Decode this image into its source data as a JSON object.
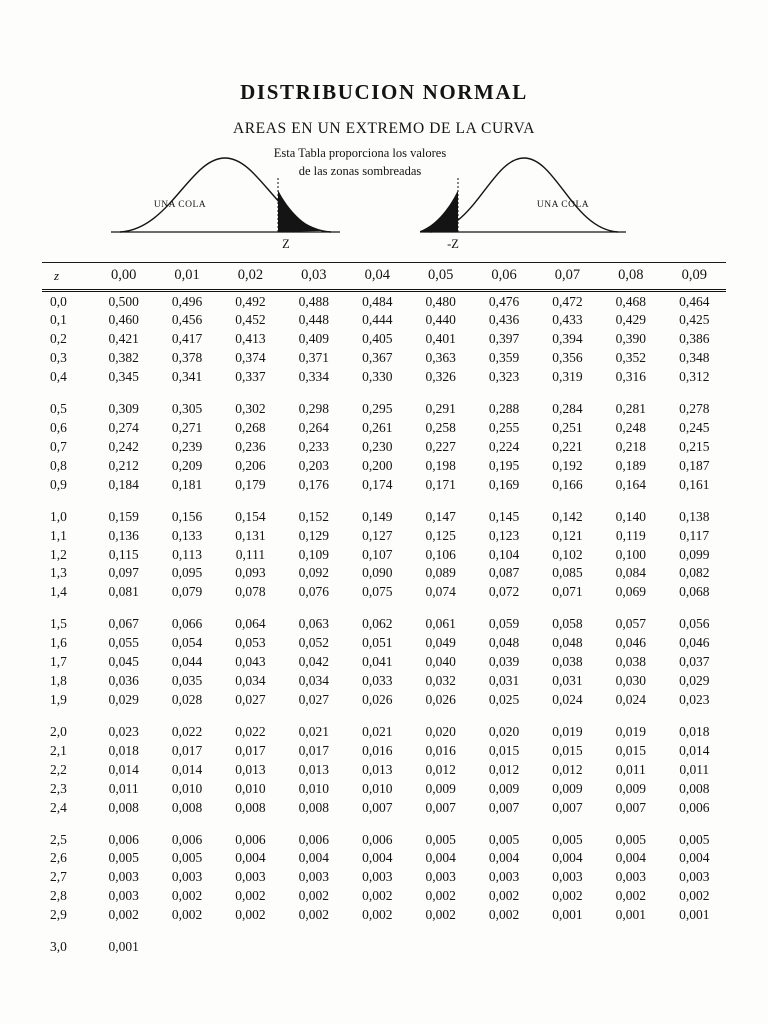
{
  "page": {
    "title": "DISTRIBUCION NORMAL",
    "subtitle": "AREAS EN UN EXTREMO DE LA CURVA",
    "note_line1": "Esta Tabla proporciona los valores",
    "note_line2": "de las zonas sombreadas",
    "ink_color": "#141414",
    "paper_color": "#fdfdfb"
  },
  "curves": {
    "left_label": "UNA COLA",
    "right_label": "UNA COLA",
    "left_axis_label": "Z",
    "right_axis_label": "-Z"
  },
  "table": {
    "headers": [
      "z",
      "0,00",
      "0,01",
      "0,02",
      "0,03",
      "0,04",
      "0,05",
      "0,06",
      "0,07",
      "0,08",
      "0,09"
    ],
    "groups": [
      [
        [
          "0,0",
          "0,500",
          "0,496",
          "0,492",
          "0,488",
          "0,484",
          "0,480",
          "0,476",
          "0,472",
          "0,468",
          "0,464"
        ],
        [
          "0,1",
          "0,460",
          "0,456",
          "0,452",
          "0,448",
          "0,444",
          "0,440",
          "0,436",
          "0,433",
          "0,429",
          "0,425"
        ],
        [
          "0,2",
          "0,421",
          "0,417",
          "0,413",
          "0,409",
          "0,405",
          "0,401",
          "0,397",
          "0,394",
          "0,390",
          "0,386"
        ],
        [
          "0,3",
          "0,382",
          "0,378",
          "0,374",
          "0,371",
          "0,367",
          "0,363",
          "0,359",
          "0,356",
          "0,352",
          "0,348"
        ],
        [
          "0,4",
          "0,345",
          "0,341",
          "0,337",
          "0,334",
          "0,330",
          "0,326",
          "0,323",
          "0,319",
          "0,316",
          "0,312"
        ]
      ],
      [
        [
          "0,5",
          "0,309",
          "0,305",
          "0,302",
          "0,298",
          "0,295",
          "0,291",
          "0,288",
          "0,284",
          "0,281",
          "0,278"
        ],
        [
          "0,6",
          "0,274",
          "0,271",
          "0,268",
          "0,264",
          "0,261",
          "0,258",
          "0,255",
          "0,251",
          "0,248",
          "0,245"
        ],
        [
          "0,7",
          "0,242",
          "0,239",
          "0,236",
          "0,233",
          "0,230",
          "0,227",
          "0,224",
          "0,221",
          "0,218",
          "0,215"
        ],
        [
          "0,8",
          "0,212",
          "0,209",
          "0,206",
          "0,203",
          "0,200",
          "0,198",
          "0,195",
          "0,192",
          "0,189",
          "0,187"
        ],
        [
          "0,9",
          "0,184",
          "0,181",
          "0,179",
          "0,176",
          "0,174",
          "0,171",
          "0,169",
          "0,166",
          "0,164",
          "0,161"
        ]
      ],
      [
        [
          "1,0",
          "0,159",
          "0,156",
          "0,154",
          "0,152",
          "0,149",
          "0,147",
          "0,145",
          "0,142",
          "0,140",
          "0,138"
        ],
        [
          "1,1",
          "0,136",
          "0,133",
          "0,131",
          "0,129",
          "0,127",
          "0,125",
          "0,123",
          "0,121",
          "0,119",
          "0,117"
        ],
        [
          "1,2",
          "0,115",
          "0,113",
          "0,111",
          "0,109",
          "0,107",
          "0,106",
          "0,104",
          "0,102",
          "0,100",
          "0,099"
        ],
        [
          "1,3",
          "0,097",
          "0,095",
          "0,093",
          "0,092",
          "0,090",
          "0,089",
          "0,087",
          "0,085",
          "0,084",
          "0,082"
        ],
        [
          "1,4",
          "0,081",
          "0,079",
          "0,078",
          "0,076",
          "0,075",
          "0,074",
          "0,072",
          "0,071",
          "0,069",
          "0,068"
        ]
      ],
      [
        [
          "1,5",
          "0,067",
          "0,066",
          "0,064",
          "0,063",
          "0,062",
          "0,061",
          "0,059",
          "0,058",
          "0,057",
          "0,056"
        ],
        [
          "1,6",
          "0,055",
          "0,054",
          "0,053",
          "0,052",
          "0,051",
          "0,049",
          "0,048",
          "0,048",
          "0,046",
          "0,046"
        ],
        [
          "1,7",
          "0,045",
          "0,044",
          "0,043",
          "0,042",
          "0,041",
          "0,040",
          "0,039",
          "0,038",
          "0,038",
          "0,037"
        ],
        [
          "1,8",
          "0,036",
          "0,035",
          "0,034",
          "0,034",
          "0,033",
          "0,032",
          "0,031",
          "0,031",
          "0,030",
          "0,029"
        ],
        [
          "1,9",
          "0,029",
          "0,028",
          "0,027",
          "0,027",
          "0,026",
          "0,026",
          "0,025",
          "0,024",
          "0,024",
          "0,023"
        ]
      ],
      [
        [
          "2,0",
          "0,023",
          "0,022",
          "0,022",
          "0,021",
          "0,021",
          "0,020",
          "0,020",
          "0,019",
          "0,019",
          "0,018"
        ],
        [
          "2,1",
          "0,018",
          "0,017",
          "0,017",
          "0,017",
          "0,016",
          "0,016",
          "0,015",
          "0,015",
          "0,015",
          "0,014"
        ],
        [
          "2,2",
          "0,014",
          "0,014",
          "0,013",
          "0,013",
          "0,013",
          "0,012",
          "0,012",
          "0,012",
          "0,011",
          "0,011"
        ],
        [
          "2,3",
          "0,011",
          "0,010",
          "0,010",
          "0,010",
          "0,010",
          "0,009",
          "0,009",
          "0,009",
          "0,009",
          "0,008"
        ],
        [
          "2,4",
          "0,008",
          "0,008",
          "0,008",
          "0,008",
          "0,007",
          "0,007",
          "0,007",
          "0,007",
          "0,007",
          "0,006"
        ]
      ],
      [
        [
          "2,5",
          "0,006",
          "0,006",
          "0,006",
          "0,006",
          "0,006",
          "0,005",
          "0,005",
          "0,005",
          "0,005",
          "0,005"
        ],
        [
          "2,6",
          "0,005",
          "0,005",
          "0,004",
          "0,004",
          "0,004",
          "0,004",
          "0,004",
          "0,004",
          "0,004",
          "0,004"
        ],
        [
          "2,7",
          "0,003",
          "0,003",
          "0,003",
          "0,003",
          "0,003",
          "0,003",
          "0,003",
          "0,003",
          "0,003",
          "0,003"
        ],
        [
          "2,8",
          "0,003",
          "0,002",
          "0,002",
          "0,002",
          "0,002",
          "0,002",
          "0,002",
          "0,002",
          "0,002",
          "0,002"
        ],
        [
          "2,9",
          "0,002",
          "0,002",
          "0,002",
          "0,002",
          "0,002",
          "0,002",
          "0,002",
          "0,001",
          "0,001",
          "0,001"
        ]
      ],
      [
        [
          "3,0",
          "0,001"
        ]
      ]
    ]
  }
}
